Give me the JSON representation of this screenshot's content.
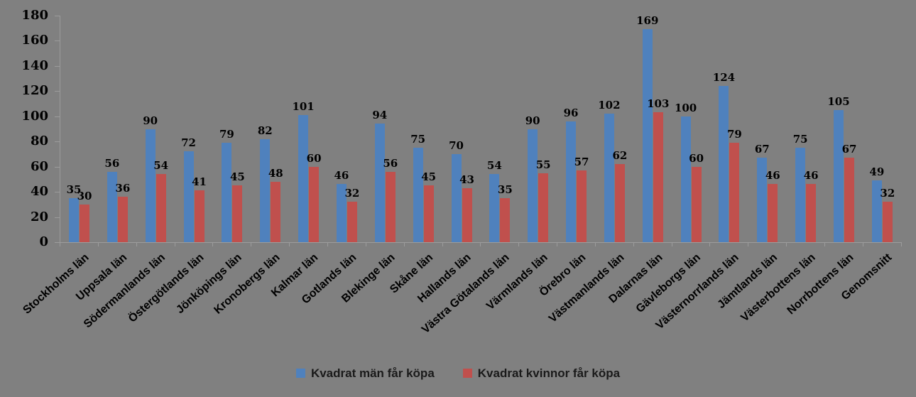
{
  "chart_data": {
    "type": "bar",
    "title": "",
    "xlabel": "",
    "ylabel": "",
    "categories": [
      "Stockholms län",
      "Uppsala län",
      "Södermanlands län",
      "Östergötlands län",
      "Jönköpings län",
      "Kronobergs län",
      "Kalmar län",
      "Gotlands län",
      "Blekinge län",
      "Skåne län",
      "Hallands län",
      "Västra Götalands län",
      "Värmlands län",
      "Örebro län",
      "Västmanlands län",
      "Dalarnas län",
      "Gävleborgs län",
      "Västernorrlands län",
      "Jämtlands län",
      "Västerbottens län",
      "Norrbottens län",
      "Genomsnitt"
    ],
    "series": [
      {
        "name": "Kvadrat män får köpa",
        "color": "#4F81BD",
        "values": [
          35,
          56,
          90,
          72,
          79,
          82,
          101,
          46,
          94,
          75,
          70,
          54,
          90,
          96,
          102,
          169,
          100,
          124,
          67,
          75,
          105,
          49
        ]
      },
      {
        "name": "Kvadrat kvinnor får köpa",
        "color": "#C0504D",
        "values": [
          30,
          36,
          54,
          41,
          45,
          48,
          60,
          32,
          56,
          45,
          43,
          35,
          55,
          57,
          62,
          103,
          60,
          79,
          46,
          46,
          67,
          32
        ]
      }
    ],
    "ylim": [
      0,
      180
    ],
    "ytick_step": 20,
    "ytick_labels": [
      "0",
      "20",
      "40",
      "60",
      "80",
      "100",
      "120",
      "140",
      "160",
      "180"
    ],
    "data_labels_shown": true,
    "grid": false,
    "legend_position": "bottom",
    "background_color": "#808080",
    "axis_color": "#9c9c9c",
    "label_color": "#000000"
  }
}
